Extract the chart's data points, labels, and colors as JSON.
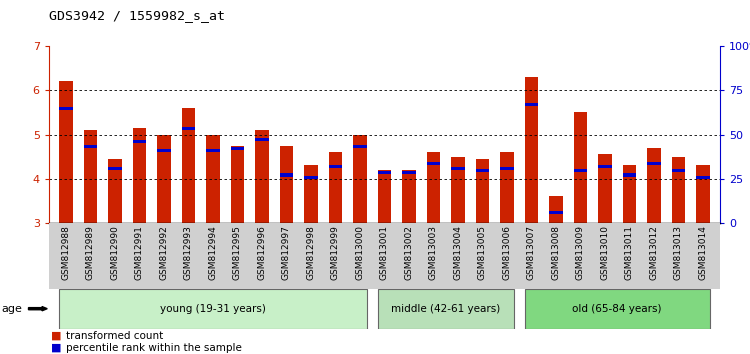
{
  "title": "GDS3942 / 1559982_s_at",
  "samples": [
    "GSM812988",
    "GSM812989",
    "GSM812990",
    "GSM812991",
    "GSM812992",
    "GSM812993",
    "GSM812994",
    "GSM812995",
    "GSM812996",
    "GSM812997",
    "GSM812998",
    "GSM812999",
    "GSM813000",
    "GSM813001",
    "GSM813002",
    "GSM813003",
    "GSM813004",
    "GSM813005",
    "GSM813006",
    "GSM813007",
    "GSM813008",
    "GSM813009",
    "GSM813010",
    "GSM813011",
    "GSM813012",
    "GSM813013",
    "GSM813014"
  ],
  "red_values": [
    6.2,
    5.1,
    4.45,
    5.15,
    5.0,
    5.6,
    5.0,
    4.75,
    5.1,
    4.75,
    4.3,
    4.6,
    5.0,
    4.2,
    4.2,
    4.6,
    4.5,
    4.45,
    4.6,
    6.3,
    3.6,
    5.5,
    4.55,
    4.3,
    4.7,
    4.5,
    4.3
  ],
  "blue_values": [
    5.55,
    4.7,
    4.2,
    4.8,
    4.6,
    5.1,
    4.6,
    4.65,
    4.85,
    4.05,
    4.0,
    4.25,
    4.7,
    4.1,
    4.1,
    4.3,
    4.2,
    4.15,
    4.2,
    5.65,
    3.2,
    4.15,
    4.25,
    4.05,
    4.3,
    4.15,
    4.0
  ],
  "ylim_left": [
    3,
    7
  ],
  "ylim_right": [
    0,
    100
  ],
  "yticks_left": [
    3,
    4,
    5,
    6,
    7
  ],
  "yticks_right": [
    0,
    25,
    50,
    75,
    100
  ],
  "ytick_labels_right": [
    "0",
    "25",
    "50",
    "75",
    "100%"
  ],
  "groups": [
    {
      "label": "young (19-31 years)",
      "start": 0,
      "end": 13,
      "color": "#c8f0c8"
    },
    {
      "label": "middle (42-61 years)",
      "start": 13,
      "end": 19,
      "color": "#b8e0b8"
    },
    {
      "label": "old (65-84 years)",
      "start": 19,
      "end": 27,
      "color": "#80d880"
    }
  ],
  "bar_color_red": "#cc2200",
  "bar_color_blue": "#0000cc",
  "bar_width": 0.55,
  "grid_color": "#000000",
  "background_color": "#ffffff",
  "legend_red": "transformed count",
  "legend_blue": "percentile rank within the sample",
  "age_label": "age",
  "left_tick_color": "#cc2200",
  "right_tick_color": "#0000cc"
}
